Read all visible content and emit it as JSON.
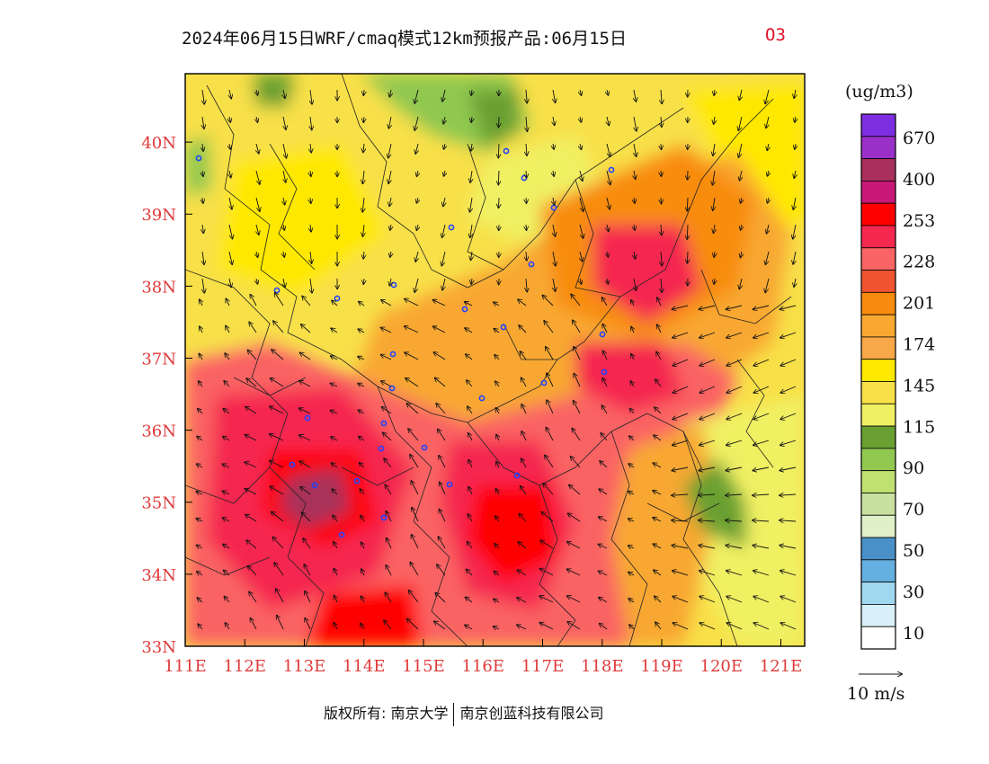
{
  "title": {
    "main": "2024年06月15日WRF/cmaq模式12km预报产品:06月15日",
    "variable": "O3"
  },
  "map": {
    "lon_range": [
      111,
      121.4
    ],
    "lat_range": [
      33,
      40.95
    ],
    "lon_ticks": [
      {
        "value": 111,
        "label": "111E"
      },
      {
        "value": 112,
        "label": "112E"
      },
      {
        "value": 113,
        "label": "113E"
      },
      {
        "value": 114,
        "label": "114E"
      },
      {
        "value": 115,
        "label": "115E"
      },
      {
        "value": 116,
        "label": "116E"
      },
      {
        "value": 117,
        "label": "117E"
      },
      {
        "value": 118,
        "label": "118E"
      },
      {
        "value": 119,
        "label": "119E"
      },
      {
        "value": 120,
        "label": "120E"
      },
      {
        "value": 121,
        "label": "121E"
      }
    ],
    "lat_ticks": [
      {
        "value": 33,
        "label": "33N"
      },
      {
        "value": 34,
        "label": "34N"
      },
      {
        "value": 35,
        "label": "35N"
      },
      {
        "value": 36,
        "label": "36N"
      },
      {
        "value": 37,
        "label": "37N"
      },
      {
        "value": 38,
        "label": "38N"
      },
      {
        "value": 39,
        "label": "39N"
      },
      {
        "value": 40,
        "label": "40N"
      }
    ]
  },
  "legend": {
    "unit": "(ug/m3)",
    "bins": [
      {
        "color": "#7d2ee0",
        "label": ""
      },
      {
        "color": "#9a30c8",
        "label": "670"
      },
      {
        "color": "#a8305a",
        "label": "400"
      },
      {
        "color": "#c81878",
        "label": "400"
      },
      {
        "color": "#ff0000",
        "label": "253"
      },
      {
        "color": "#f52850",
        "label": "228"
      },
      {
        "color": "#fa6464",
        "label": "228"
      },
      {
        "color": "#ee5530",
        "label": "201"
      },
      {
        "color": "#f88c10",
        "label": "201"
      },
      {
        "color": "#f8a830",
        "label": "174"
      },
      {
        "color": "#f8a848",
        "label": "174"
      },
      {
        "color": "#ffe800",
        "label": "145"
      },
      {
        "color": "#f8e048",
        "label": "115"
      },
      {
        "color": "#f0f064",
        "label": "115"
      },
      {
        "color": "#6aa032",
        "label": "90"
      },
      {
        "color": "#90c850",
        "label": "90"
      },
      {
        "color": "#c0e070",
        "label": "70"
      },
      {
        "color": "#c8e0a0",
        "label": "70"
      },
      {
        "color": "#e0f0c8",
        "label": "50"
      },
      {
        "color": "#4a90c8",
        "label": "50"
      },
      {
        "color": "#64b0e0",
        "label": "30"
      },
      {
        "color": "#a0d8f0",
        "label": "30"
      },
      {
        "color": "#d8f0f8",
        "label": "10"
      },
      {
        "color": "#ffffff",
        "label": "10"
      }
    ],
    "shown_labels": [
      "670",
      "400",
      "253",
      "228",
      "201",
      "174",
      "145",
      "115",
      "90",
      "70",
      "50",
      "30",
      "10"
    ],
    "vector_ref": "10 m/s"
  },
  "footer": {
    "left": "版权所有: 南京大学",
    "right": "南京创蓝科技有限公司"
  }
}
